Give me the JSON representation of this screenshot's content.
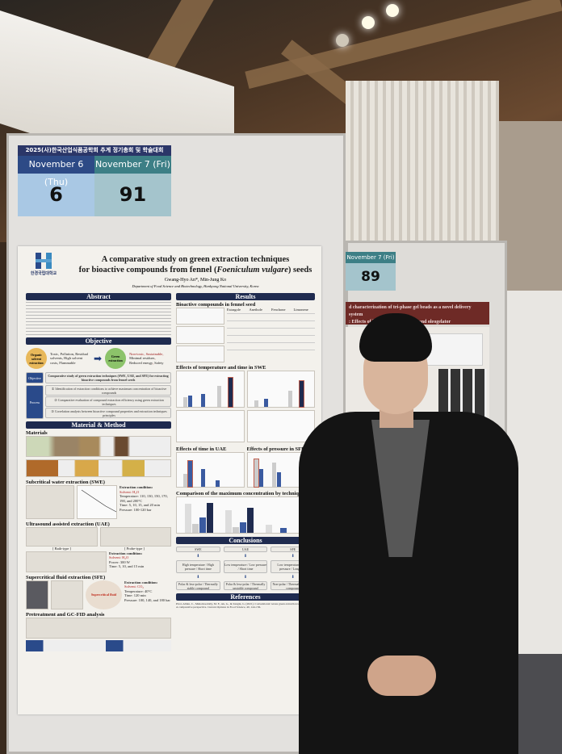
{
  "scene": {
    "left_board": {
      "header": {
        "event": "2025(사)한국산업식품공학회 추계 정기총회 및 학술대회",
        "days": [
          {
            "label": "November 6 (Thu)",
            "number": "6",
            "color": "#2d4a86",
            "bg": "#a9c8e4"
          },
          {
            "label": "November 7 (Fri)",
            "number": "91",
            "color": "#3d7f86",
            "bg": "#a4c4cc"
          }
        ]
      },
      "poster": {
        "logo_text": "한경국립대학교",
        "logo_sub": "Hankyong National University",
        "title_line1": "A comparative study on green extraction techniques",
        "title_line2_pre": "for bioactive compounds from fennel (",
        "title_italic": "Foeniculum vulgare",
        "title_line2_post": ") seeds",
        "authors": "Gwang-Hyo An*, Min-Jung Ko",
        "affiliation": "Department of Food Science and Biotechnology, Hankyong National University, Korea",
        "sections": {
          "abstract": "Abstract",
          "objective": "Objective",
          "material_method": "Material & Method",
          "results": "Results",
          "conclusions": "Conclusions",
          "references": "References"
        },
        "objective": {
          "organic": "Organic solvent extraction",
          "organic_points": [
            "Toxic",
            "Pollution",
            "Residual solvents",
            "High solvent costs",
            "Flammable"
          ],
          "green": "Green extraction",
          "green_points": [
            "Non-toxic",
            "Sustainable",
            "Minimal residues",
            "Reduced energy",
            "Safety"
          ],
          "objective_label": "Objective",
          "objective_text": "Comparative study of green extraction techniques (SWE, UAE, and SFE) for extracting bioactive compounds from fennel seeds",
          "process_label": "Process",
          "process_steps": [
            "① Identification of extraction conditions to achieve maximum concentration of bioactive compounds",
            "② Comparative evaluation of compound extraction efficiency using green extraction techniques",
            "③ Correlation analysis between bioactive compound properties and extraction techniques principles"
          ]
        },
        "methods": {
          "materials": "Materials",
          "swe": "Subcritical water extraction (SWE)",
          "swe_conditions": [
            "Extraction condition:",
            "Solvent: H₂O",
            "Temperature: 110, 130, 150, 170, 190, and 200°C",
            "Time: 5, 10, 15, and 20 min",
            "Pressure: 100-120 bar"
          ],
          "uae": "Ultrasound assisted extraction (UAE)",
          "uae_conditions": [
            "Extraction condition:",
            "Solvent: H₂O",
            "Power: 300 W",
            "Time: 5, 10, and 15 min"
          ],
          "uae_types": [
            "[ Bath-type ]",
            "[ Probe-type ]"
          ],
          "sfe": "Supercritical fluid extraction (SFE)",
          "sfe_conditions": [
            "Extraction condition:",
            "Solvent: CO₂",
            "Temperature: 40°C",
            "Time: 120 min",
            "Pressure: 100, 140, and 180 bar"
          ],
          "sfe_fluid": "Supercritical fluid",
          "pretreatment": "Pretreatment and GC-FID analysis"
        },
        "results": {
          "bioactive": "Bioactive compounds in fennel seed",
          "compounds": [
            "Estragole",
            "Anethole",
            "Fenchone",
            "Limonene"
          ],
          "swe_effects": "Effects of temperature and time in SWE",
          "uae_effects": "Effects of time in UAE",
          "pressure_effects": "Effects of pressure in SFE",
          "comparison": "Comparison of the maximum concentration by technique"
        },
        "conclusions": [
          {
            "method": "SWE",
            "conditions": "High temperature / High pressure / Short time",
            "result": "Polar & less-polar / Thermally stable compound"
          },
          {
            "method": "UAE",
            "conditions": "Low temperature / Low pressure / Short time",
            "result": "Polar & less-polar / Thermally unstable compound"
          },
          {
            "method": "SFE",
            "conditions": "Low temperature / High pressure / Long time",
            "result": "Non-polar / Thermally unstable compound"
          }
        ],
        "reference_text": "Picot-Allain, C., Mahomoodally, M. F., Ak, G., & Zengin, G. (2021). Conventional versus green extraction techniques — A comparative perspective. Current Opinion in Food Science, 40, 144-156."
      }
    },
    "right_board": {
      "day_label": "November 7 (Fri)",
      "number": "89",
      "banner_line1": "d characterization of tri-phase gel beads as a novel delivery system",
      "banner_line2": ": Effects of hydrogel:oleogel ratio and oleogelator"
    }
  }
}
